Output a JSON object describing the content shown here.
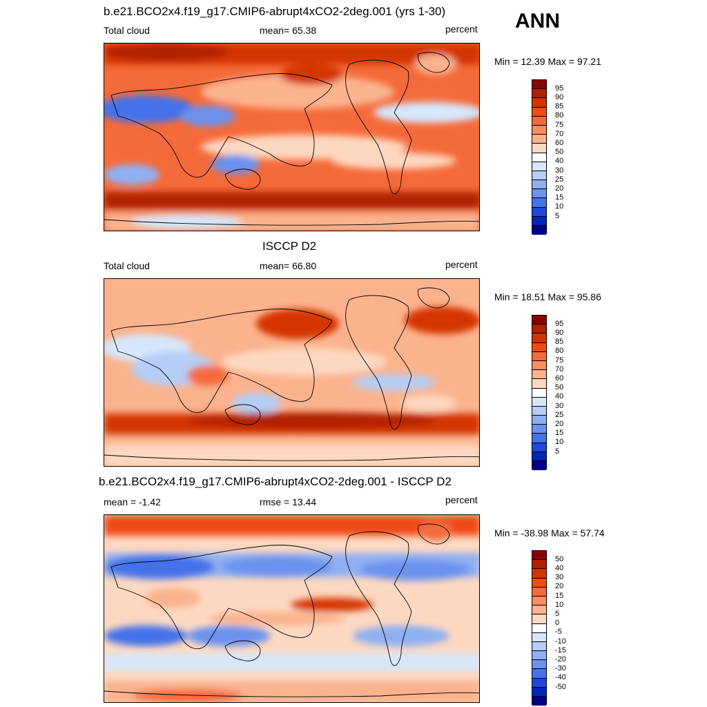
{
  "season": "ANN",
  "units": "percent",
  "panels": [
    {
      "title": "b.e21.BCO2x4.f19_g17.CMIP6-abrupt4xCO2-2deg.001 (yrs 1-30)",
      "left_label": "Total cloud",
      "center_label": "mean=  65.38",
      "right_label": "percent",
      "minmax": "Min =  12.39 Max =  97.21",
      "levels": [
        "95",
        "90",
        "85",
        "80",
        "75",
        "70",
        "60",
        "50",
        "40",
        "30",
        "25",
        "20",
        "15",
        "10",
        "5"
      ],
      "colors": [
        "#8b0000",
        "#b22000",
        "#d43400",
        "#ef4c12",
        "#f56a3a",
        "#f88d62",
        "#fbb38e",
        "#fdd8c1",
        "#ffffff",
        "#d6e7fb",
        "#b5cdf7",
        "#8fb0f2",
        "#6b92ee",
        "#4472ea",
        "#1e48dc",
        "#0027b8",
        "#00008b"
      ]
    },
    {
      "title": "ISCCP D2",
      "left_label": "Total cloud",
      "center_label": "mean=  66.80",
      "right_label": "percent",
      "minmax": "Min =  18.51 Max =  95.86",
      "levels": [
        "95",
        "90",
        "85",
        "80",
        "75",
        "70",
        "60",
        "50",
        "40",
        "30",
        "25",
        "20",
        "15",
        "10",
        "5"
      ],
      "colors": [
        "#8b0000",
        "#b22000",
        "#d43400",
        "#ef4c12",
        "#f56a3a",
        "#f88d62",
        "#fbb38e",
        "#fdd8c1",
        "#ffffff",
        "#d6e7fb",
        "#b5cdf7",
        "#8fb0f2",
        "#6b92ee",
        "#4472ea",
        "#1e48dc",
        "#0027b8",
        "#00008b"
      ]
    },
    {
      "title": "b.e21.BCO2x4.f19_g17.CMIP6-abrupt4xCO2-2deg.001 - ISCCP D2",
      "left_label": "mean =  -1.42",
      "center_label": "rmse =  13.44",
      "right_label": "percent",
      "minmax": "Min = -38.98 Max =  57.74",
      "levels": [
        "50",
        "40",
        "30",
        "20",
        "15",
        "10",
        "5",
        "0",
        "-5",
        "-10",
        "-15",
        "-20",
        "-30",
        "-40",
        "-50"
      ],
      "colors": [
        "#8b0000",
        "#b22000",
        "#d43400",
        "#ef4c12",
        "#f56a3a",
        "#f88d62",
        "#fbb38e",
        "#fdd8c1",
        "#ffffff",
        "#d6e7fb",
        "#b5cdf7",
        "#8fb0f2",
        "#6b92ee",
        "#4472ea",
        "#1e48dc",
        "#0027b8",
        "#00008b"
      ]
    }
  ]
}
